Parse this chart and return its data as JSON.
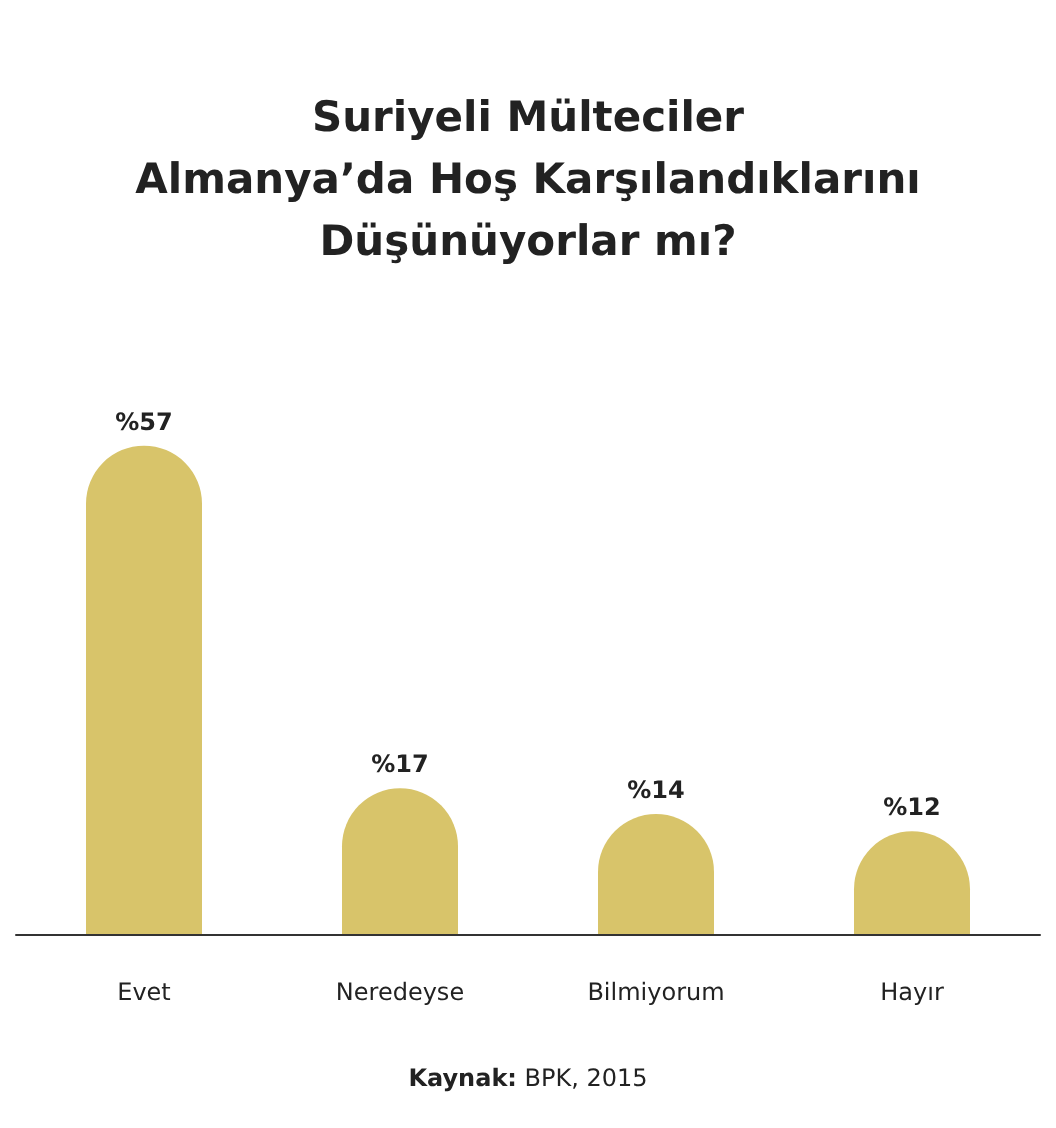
{
  "chart_data": {
    "type": "bar",
    "title": "Suriyeli Mülteciler\nAlmanya’da Hoş Karşılandıklarını\nDüşünüyorlar mı?",
    "categories": [
      "Evet",
      "Neredeyse",
      "Bilmiyorum",
      "Hayır"
    ],
    "values": [
      57,
      17,
      14,
      12
    ],
    "value_labels": [
      "%57",
      "%17",
      "%14",
      "%12"
    ],
    "color": "#d8c46a",
    "annotations": [
      "Kaynak: BPK, 2015"
    ]
  }
}
